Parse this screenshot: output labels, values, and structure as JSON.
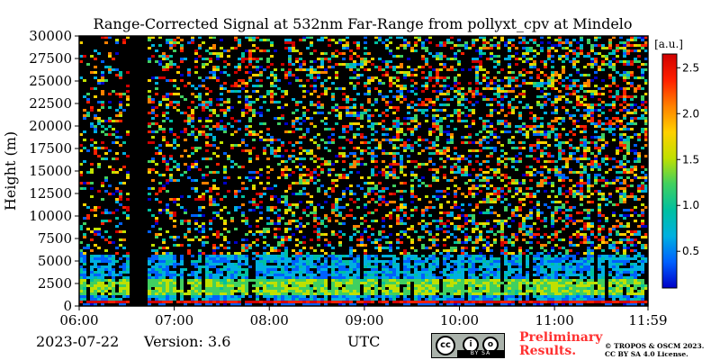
{
  "chart_data": {
    "type": "heatmap",
    "title": "Range-Corrected Signal at 532nm Far-Range from pollyxt_cpv at Mindelo",
    "xlabel": "",
    "ylabel": "Height (m)",
    "x_ticks": [
      "06:00",
      "07:00",
      "08:00",
      "09:00",
      "10:00",
      "11:00",
      "11:59"
    ],
    "x_range": [
      "06:00",
      "11:59"
    ],
    "y_ticks": [
      0,
      2500,
      5000,
      7500,
      10000,
      12500,
      15000,
      17500,
      20000,
      22500,
      25000,
      27500,
      30000
    ],
    "ylim": [
      0,
      30000
    ],
    "colorbar": {
      "label": "[a.u.]",
      "ticks": [
        0.5,
        1.0,
        1.5,
        2.0,
        2.5
      ],
      "range": [
        0.1,
        2.65
      ],
      "colormap": [
        "#0000c8",
        "#0060ff",
        "#00b0e0",
        "#00c0a0",
        "#40d060",
        "#c0e000",
        "#ffd000",
        "#ff8000",
        "#ff2000",
        "#d00000"
      ]
    },
    "features": {
      "no_data_interval": [
        "06:30",
        "06:42"
      ],
      "boundary_layer_top_m": 2500,
      "enhanced_layer_m": [
        1500,
        3000
      ],
      "near_surface_high_signal_m": [
        500,
        900
      ]
    }
  },
  "footer": {
    "date": "2023-07-22",
    "version": "Version: 3.6",
    "axis_unit": "UTC",
    "preliminary": [
      "Preliminary",
      "Results."
    ],
    "copyright": [
      "© TROPOS & OSCM 2023.",
      "CC BY SA 4.0 License."
    ],
    "license_badge": {
      "cc": "cc",
      "by": "i",
      "sa": "o",
      "bar": "BY  SA"
    }
  }
}
